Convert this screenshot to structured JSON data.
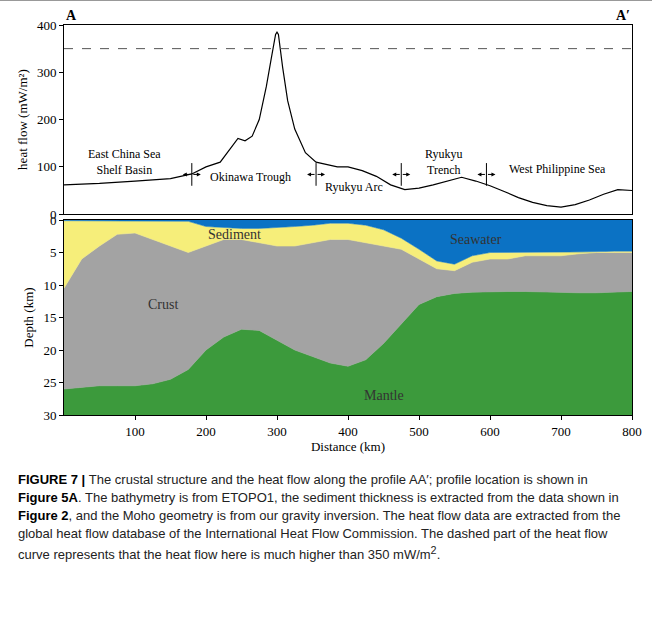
{
  "chart_data": [
    {
      "type": "line",
      "ylabel": "heat flow (mW/m²)",
      "x": [
        0,
        50,
        100,
        150,
        180,
        200,
        220,
        235,
        245,
        255,
        265,
        275,
        285,
        292,
        298,
        300,
        302,
        308,
        315,
        325,
        340,
        355,
        370,
        385,
        400,
        420,
        440,
        460,
        480,
        500,
        520,
        540,
        560,
        580,
        600,
        620,
        640,
        660,
        680,
        700,
        720,
        740,
        760,
        780,
        800
      ],
      "series": [
        {
          "color": "#000000",
          "values": [
            62,
            65,
            70,
            75,
            85,
            100,
            110,
            140,
            160,
            155,
            165,
            200,
            270,
            330,
            380,
            385,
            380,
            310,
            240,
            180,
            130,
            110,
            105,
            100,
            100,
            92,
            80,
            62,
            52,
            55,
            62,
            70,
            78,
            70,
            60,
            48,
            35,
            25,
            18,
            15,
            20,
            30,
            42,
            52,
            50
          ]
        }
      ],
      "xlim": [
        0,
        800
      ],
      "ylim": [
        0,
        400
      ],
      "yticks": [
        0,
        100,
        200,
        300,
        400
      ],
      "tick_labels": "y",
      "grid": false,
      "reference_line": {
        "value": 350,
        "line_style": "dashed"
      },
      "boundaries": [
        180,
        355,
        475,
        595
      ],
      "regions": [
        {
          "lines": [
            "East China Sea",
            "Shelf Basin"
          ],
          "x": 85,
          "y": 110
        },
        {
          "lines": [
            "Okinawa Trough"
          ],
          "x": 262,
          "y": 78
        },
        {
          "lines": [
            "Ryukyu Arc"
          ],
          "x": 408,
          "y": 58
        },
        {
          "lines": [
            "Ryukyu",
            "Trench"
          ],
          "x": 535,
          "y": 110
        },
        {
          "lines": [
            "West Philippine Sea"
          ],
          "x": 695,
          "y": 95
        }
      ],
      "corner_labels": [
        "A",
        "A′"
      ]
    },
    {
      "type": "area",
      "xlabel": "Distance (km)",
      "ylabel": "Depth (km)",
      "x": [
        0,
        25,
        50,
        75,
        100,
        125,
        150,
        175,
        200,
        225,
        250,
        275,
        300,
        325,
        350,
        375,
        400,
        425,
        450,
        475,
        500,
        525,
        550,
        575,
        600,
        625,
        650,
        675,
        700,
        725,
        750,
        775,
        800
      ],
      "series": [
        {
          "name": "Seawater",
          "color": "#0b72c4",
          "label_x": 580,
          "label_y": 3,
          "values": [
            0.1,
            0.1,
            0.1,
            0.1,
            0.1,
            0.1,
            0.1,
            0.2,
            1,
            1.2,
            1.3,
            1.3,
            1.2,
            1,
            0.8,
            0.5,
            0.5,
            0.8,
            1.5,
            2.8,
            4.5,
            6.3,
            6.8,
            5.5,
            5,
            5,
            5,
            5,
            5,
            5,
            4.9,
            4.8,
            4.8
          ]
        },
        {
          "name": "Sediment",
          "color": "#f6ee7a",
          "label_x": 240,
          "label_y": 2.2,
          "values": [
            10.5,
            6,
            4,
            2.2,
            2,
            3,
            4,
            5,
            4,
            3,
            3,
            3.5,
            4,
            4,
            3.5,
            3,
            3,
            3.5,
            4,
            4.5,
            6,
            7.5,
            7.8,
            6.5,
            6,
            6,
            5.5,
            5.5,
            5.5,
            5.2,
            5,
            5,
            5
          ]
        },
        {
          "name": "Crust",
          "color": "#a3a3a3",
          "label_x": 140,
          "label_y": 13,
          "values": [
            26,
            25.8,
            25.5,
            25.5,
            25.5,
            25.2,
            24.5,
            23,
            20,
            18,
            16.8,
            17,
            18.5,
            20,
            21,
            22,
            22.5,
            21.5,
            19,
            16,
            13,
            11.8,
            11.3,
            11.1,
            11,
            11,
            11,
            11.1,
            11.2,
            11.2,
            11.2,
            11.1,
            11
          ]
        },
        {
          "name": "Mantle",
          "color": "#3c9a3c",
          "label_x": 450,
          "label_y": 27
        }
      ],
      "xlim": [
        0,
        800
      ],
      "xticks": [
        100,
        200,
        300,
        400,
        500,
        600,
        700,
        800
      ],
      "ylim": [
        30,
        0
      ],
      "yticks": [
        0,
        5,
        10,
        15,
        20,
        25,
        30
      ],
      "grid": false
    }
  ],
  "caption": [
    {
      "text": "FIGURE 7 | ",
      "bold": true
    },
    {
      "text": "The crustal structure and the heat flow along the profile AA′; profile location is shown in "
    },
    {
      "text": "Figure 5A",
      "bold": true
    },
    {
      "text": ". The bathymetry is from ETOPO1, the sediment thickness is extracted from the data shown in "
    },
    {
      "text": "Figure 2",
      "bold": true
    },
    {
      "text": ", and the Moho geometry is from our gravity inversion. The heat flow data are extracted from the global heat flow database of the International Heat Flow Commission. The dashed part of the heat flow curve represents that the heat flow here is much higher than 350 mW/m"
    },
    {
      "text": "2",
      "sup": true
    },
    {
      "text": "."
    }
  ]
}
